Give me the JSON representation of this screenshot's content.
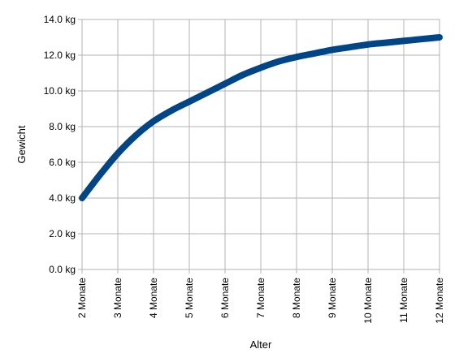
{
  "chart_data": {
    "type": "line",
    "title": "",
    "xlabel": "Alter",
    "ylabel": "Gewicht",
    "x_tick_labels": [
      "2 Monate",
      "3 Monate",
      "4 Monate",
      "5 Monate",
      "6 Monate",
      "7 Monate",
      "8 Monate",
      "9 Monate",
      "10 Monate",
      "11 Monate",
      "12 Monate"
    ],
    "y_tick_labels": [
      "0.0 kg",
      "2.0 kg",
      "4.0 kg",
      "6.0 kg",
      "8.0 kg",
      "10.0 kg",
      "12.0 kg",
      "14.0 kg"
    ],
    "xlim": [
      2,
      12
    ],
    "ylim": [
      0,
      14
    ],
    "grid": true,
    "legend": "none",
    "series": [
      {
        "color": "#004586",
        "x": [
          2,
          2.5,
          3,
          3.5,
          4,
          4.5,
          5,
          5.5,
          6,
          6.5,
          7,
          7.5,
          8,
          8.5,
          9,
          9.5,
          10,
          10.5,
          11,
          11.5,
          12
        ],
        "values": [
          4.0,
          5.3,
          6.5,
          7.5,
          8.3,
          8.9,
          9.4,
          9.9,
          10.4,
          10.9,
          11.3,
          11.65,
          11.9,
          12.1,
          12.3,
          12.45,
          12.6,
          12.7,
          12.8,
          12.9,
          13.0
        ]
      }
    ]
  }
}
